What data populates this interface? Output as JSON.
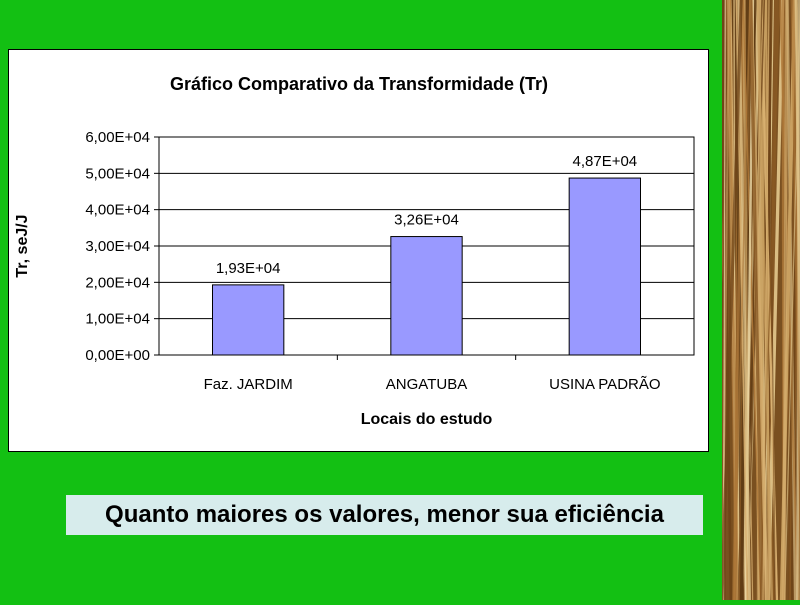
{
  "background_color": "#13c013",
  "caption": "Quanto maiores os valores, menor sua eficiência",
  "decorative_image": "dry-straw-grass-photo",
  "chart_data": {
    "type": "bar",
    "title": "Gráfico Comparativo da Transformidade (Tr)",
    "xlabel": "Locais do estudo",
    "ylabel": "Tr, seJ/J",
    "categories": [
      "Faz. JARDIM",
      "ANGATUBA",
      "USINA PADRÃO"
    ],
    "values": [
      19300,
      32600,
      48700
    ],
    "data_labels": [
      "1,93E+04",
      "3,26E+04",
      "4,87E+04"
    ],
    "ylim": [
      0,
      60000
    ],
    "ytick_labels": [
      "0,00E+00",
      "1,00E+04",
      "2,00E+04",
      "3,00E+04",
      "4,00E+04",
      "5,00E+04",
      "6,00E+04"
    ],
    "bar_color": "#9999ff",
    "grid": true,
    "legend": "none"
  }
}
